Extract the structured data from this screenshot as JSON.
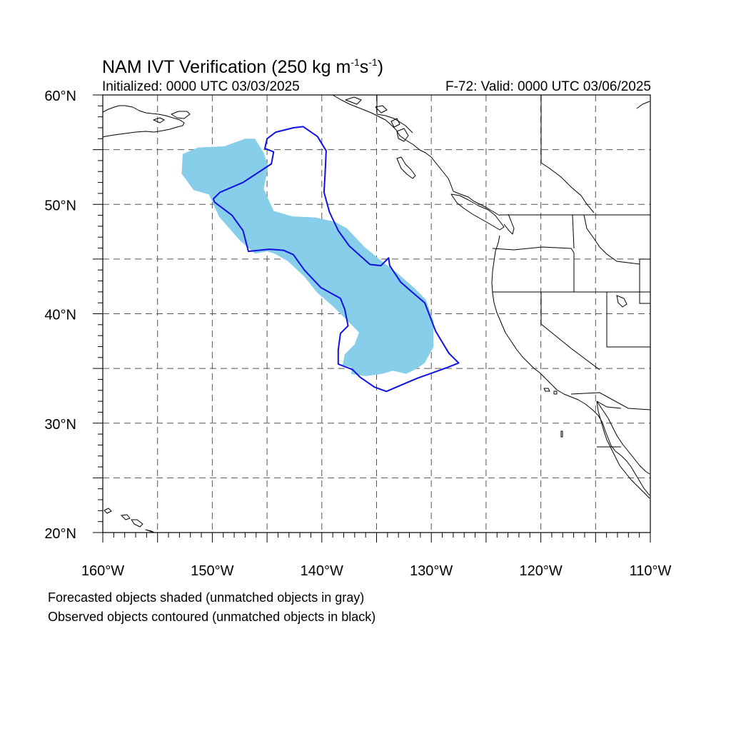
{
  "title": {
    "main": "NAM IVT Verification (250 kg m",
    "exp1": "-1",
    "mid": "s",
    "exp2": "-1",
    "end": ")"
  },
  "subtitle_left": "Initialized: 0000 UTC 03/03/2025",
  "subtitle_right": "F-72: Valid: 0000 UTC 03/06/2025",
  "captions": [
    "Forecasted objects shaded (unmatched objects in gray)",
    "Observed objects contoured (unmatched objects in black)"
  ],
  "map": {
    "extent": {
      "lon": [
        -160,
        -110
      ],
      "lat": [
        20,
        60
      ]
    },
    "grid_spacing_deg": 5,
    "lon_ticks": [
      {
        "value": -160,
        "label": "160°W"
      },
      {
        "value": -150,
        "label": "150°W"
      },
      {
        "value": -140,
        "label": "140°W"
      },
      {
        "value": -130,
        "label": "130°W"
      },
      {
        "value": -120,
        "label": "120°W"
      },
      {
        "value": -110,
        "label": "110°W"
      }
    ],
    "lat_ticks": [
      {
        "value": 60,
        "label": "60°N"
      },
      {
        "value": 50,
        "label": "50°N"
      },
      {
        "value": 40,
        "label": "40°N"
      },
      {
        "value": 30,
        "label": "30°N"
      },
      {
        "value": 20,
        "label": "20°N"
      }
    ],
    "colors": {
      "forecast_fill": "#87ceeb",
      "observed_contour": "#1010e0",
      "coastline": "#000000",
      "grid": "#555555"
    },
    "forecast_object": [
      [
        -152.7,
        54.6
      ],
      [
        -151.3,
        55.2
      ],
      [
        -148.9,
        55.3
      ],
      [
        -147.0,
        56.0
      ],
      [
        -146.1,
        56.0
      ],
      [
        -145.3,
        54.7
      ],
      [
        -144.9,
        53.5
      ],
      [
        -145.3,
        51.4
      ],
      [
        -144.4,
        49.4
      ],
      [
        -142.7,
        48.9
      ],
      [
        -140.6,
        48.8
      ],
      [
        -138.8,
        48.4
      ],
      [
        -137.7,
        47.8
      ],
      [
        -136.1,
        46.1
      ],
      [
        -134.4,
        44.7
      ],
      [
        -133.2,
        43.8
      ],
      [
        -131.5,
        42.3
      ],
      [
        -130.5,
        41.3
      ],
      [
        -129.8,
        39.3
      ],
      [
        -129.8,
        37.0
      ],
      [
        -130.6,
        35.5
      ],
      [
        -131.5,
        34.9
      ],
      [
        -132.3,
        34.5
      ],
      [
        -133.5,
        34.8
      ],
      [
        -134.5,
        34.5
      ],
      [
        -136.0,
        34.3
      ],
      [
        -137.3,
        34.5
      ],
      [
        -137.3,
        35.1
      ],
      [
        -138.1,
        35.3
      ],
      [
        -137.9,
        36.3
      ],
      [
        -137.0,
        37.2
      ],
      [
        -136.6,
        38.3
      ],
      [
        -137.4,
        39.1
      ],
      [
        -139.0,
        40.7
      ],
      [
        -140.4,
        41.9
      ],
      [
        -141.6,
        43.4
      ],
      [
        -143.1,
        44.8
      ],
      [
        -144.3,
        45.5
      ],
      [
        -145.0,
        45.7
      ],
      [
        -146.1,
        45.5
      ],
      [
        -147.5,
        46.7
      ],
      [
        -149.4,
        48.9
      ],
      [
        -150.3,
        50.9
      ],
      [
        -151.7,
        51.3
      ],
      [
        -152.8,
        52.8
      ]
    ],
    "observed_object": [
      [
        -149.8,
        50.2
      ],
      [
        -148.2,
        49.0
      ],
      [
        -147.2,
        47.6
      ],
      [
        -146.7,
        45.7
      ],
      [
        -144.8,
        45.9
      ],
      [
        -143.5,
        45.8
      ],
      [
        -142.6,
        45.4
      ],
      [
        -141.6,
        44.0
      ],
      [
        -140.1,
        42.4
      ],
      [
        -138.3,
        41.4
      ],
      [
        -137.9,
        40.4
      ],
      [
        -137.6,
        38.9
      ],
      [
        -138.3,
        38.2
      ],
      [
        -138.5,
        36.7
      ],
      [
        -138.5,
        35.4
      ],
      [
        -137.2,
        34.9
      ],
      [
        -136.5,
        34.2
      ],
      [
        -135.2,
        33.3
      ],
      [
        -134.1,
        32.9
      ],
      [
        -132.7,
        33.5
      ],
      [
        -131.3,
        34.1
      ],
      [
        -129.9,
        34.6
      ],
      [
        -128.5,
        35.1
      ],
      [
        -127.5,
        35.5
      ],
      [
        -128.4,
        36.4
      ],
      [
        -129.6,
        38.4
      ],
      [
        -130.6,
        41.0
      ],
      [
        -131.9,
        42.1
      ],
      [
        -132.8,
        42.9
      ],
      [
        -133.8,
        44.4
      ],
      [
        -133.9,
        45.1
      ],
      [
        -134.6,
        44.4
      ],
      [
        -135.6,
        44.5
      ],
      [
        -137.5,
        46.2
      ],
      [
        -138.5,
        47.6
      ],
      [
        -139.3,
        49.3
      ],
      [
        -139.8,
        51.1
      ],
      [
        -139.7,
        52.8
      ],
      [
        -139.6,
        54.9
      ],
      [
        -140.4,
        56.2
      ],
      [
        -141.7,
        57.1
      ],
      [
        -142.6,
        57.0
      ],
      [
        -144.2,
        56.6
      ],
      [
        -145.0,
        56.0
      ],
      [
        -145.2,
        55.1
      ],
      [
        -144.4,
        54.8
      ],
      [
        -144.6,
        53.7
      ],
      [
        -147.2,
        52.0
      ],
      [
        -149.3,
        51.1
      ],
      [
        -149.9,
        50.5
      ]
    ]
  }
}
